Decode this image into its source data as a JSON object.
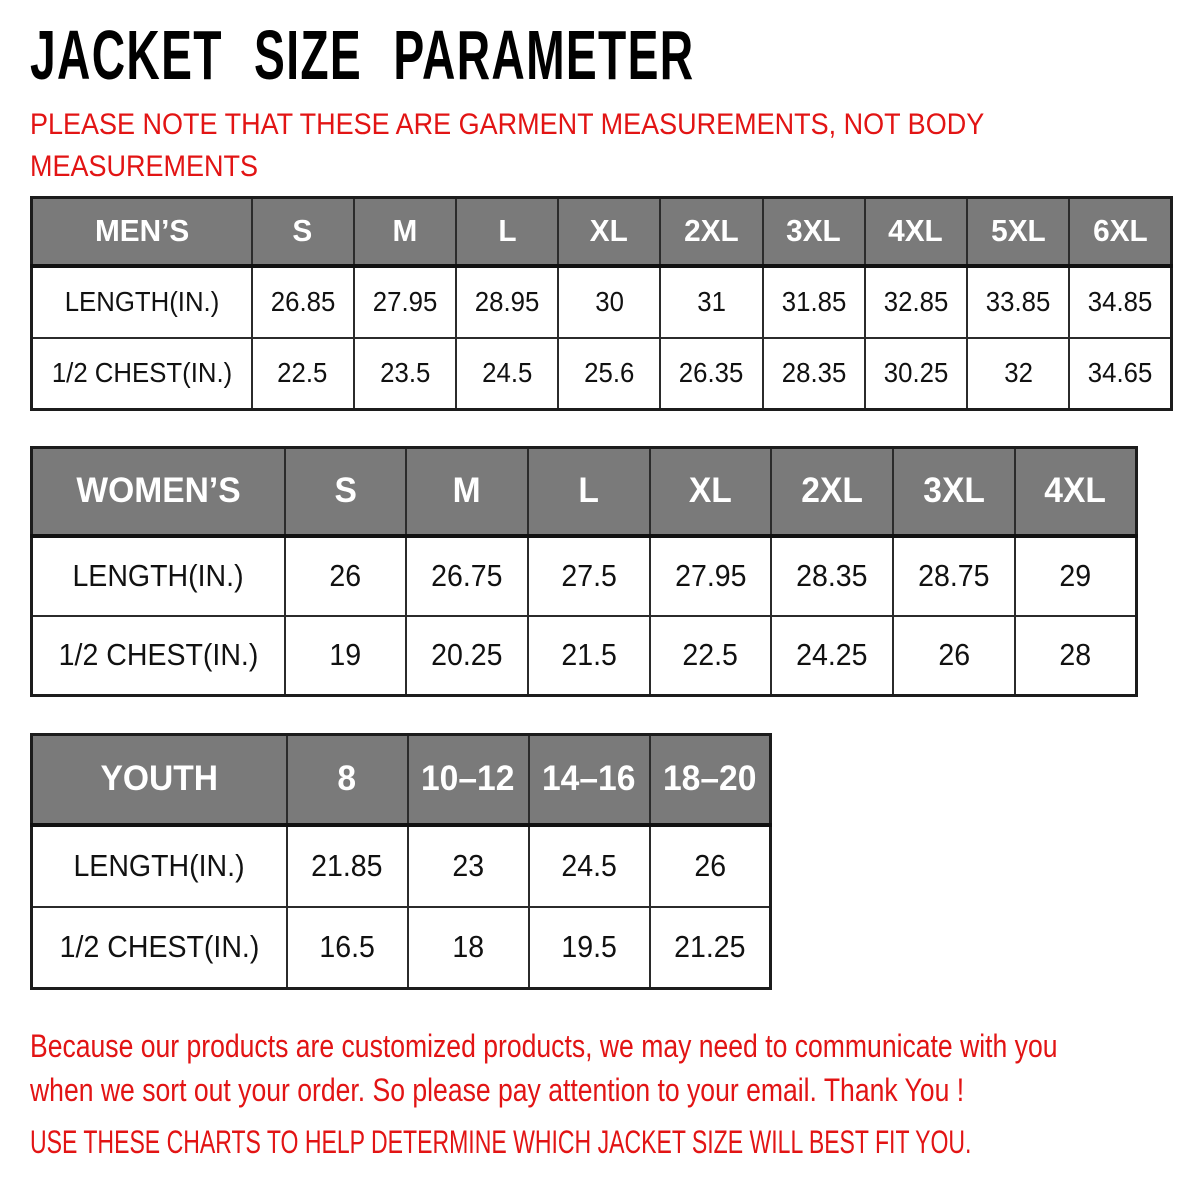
{
  "header": {
    "title": "JACKET SIZE PARAMETER",
    "note_lines": [
      "PLEASE NOTE THAT THESE ARE GARMENT MEASUREMENTS, NOT BODY",
      "MEASUREMENTS"
    ]
  },
  "chart_data": [
    {
      "type": "table",
      "title": "MEN’S",
      "columns": [
        "S",
        "M",
        "L",
        "XL",
        "2XL",
        "3XL",
        "4XL",
        "5XL",
        "6XL"
      ],
      "rows": [
        {
          "label": "LENGTH(IN.)",
          "values": [
            26.85,
            27.95,
            28.95,
            30,
            31,
            31.85,
            32.85,
            33.85,
            34.85
          ]
        },
        {
          "label": "1/2 CHEST(IN.)",
          "values": [
            22.5,
            23.5,
            24.5,
            25.6,
            26.35,
            28.35,
            30.25,
            32,
            34.65
          ]
        }
      ]
    },
    {
      "type": "table",
      "title": "WOMEN’S",
      "columns": [
        "S",
        "M",
        "L",
        "XL",
        "2XL",
        "3XL",
        "4XL"
      ],
      "rows": [
        {
          "label": "LENGTH(IN.)",
          "values": [
            26,
            26.75,
            27.5,
            27.95,
            28.35,
            28.75,
            29
          ]
        },
        {
          "label": "1/2 CHEST(IN.)",
          "values": [
            19,
            20.25,
            21.5,
            22.5,
            24.25,
            26,
            28
          ]
        }
      ]
    },
    {
      "type": "table",
      "title": "YOUTH",
      "columns": [
        "8",
        "10–12",
        "14–16",
        "18–20"
      ],
      "rows": [
        {
          "label": "LENGTH(IN.)",
          "values": [
            21.85,
            23,
            24.5,
            26
          ]
        },
        {
          "label": "1/2 CHEST(IN.)",
          "values": [
            16.5,
            18,
            19.5,
            21.25
          ]
        }
      ]
    }
  ],
  "footer": {
    "notice_lines": [
      "Because our products are customized products, we may need to communicate with you",
      "when we sort out your order. So please pay attention to your email. Thank You !"
    ],
    "advice": "USE THESE CHARTS TO HELP DETERMINE WHICH JACKET SIZE WILL BEST FIT YOU."
  },
  "colors": {
    "header_gray": "#7a7a7a",
    "accent_red": "#e21414",
    "border_black": "#1c1c1c",
    "text_black": "#111111",
    "header_text_white": "#ffffff"
  }
}
